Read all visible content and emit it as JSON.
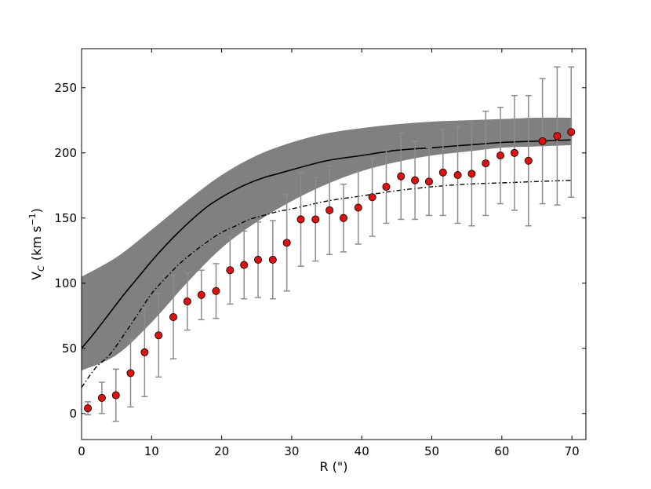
{
  "chart_data": {
    "type": "scatter",
    "xlabel": "R (\")",
    "ylabel_main": "V",
    "ylabel_sub": "C",
    "ylabel_units": "(km s",
    "ylabel_exp": "−1",
    "ylabel_close": ")",
    "xlim": [
      0,
      72
    ],
    "ylim": [
      -20,
      280
    ],
    "xticks": [
      0,
      10,
      20,
      30,
      40,
      50,
      60,
      70
    ],
    "yticks": [
      0,
      50,
      100,
      150,
      200,
      250
    ],
    "colors": {
      "band": "#808080",
      "model": "#000000",
      "dashdot": "#000000",
      "marker_fill": "#e0100e",
      "marker_edge": "#000000",
      "errorbar": "#8c8c8c"
    },
    "band": {
      "x": [
        0,
        5,
        10,
        15,
        20,
        25,
        30,
        35,
        40,
        45,
        50,
        55,
        60,
        65,
        70
      ],
      "upper": [
        105,
        120,
        141,
        163,
        183,
        198,
        208,
        215,
        219,
        222,
        224,
        225,
        226,
        227,
        227
      ],
      "lower": [
        33,
        45,
        70,
        100,
        127,
        147,
        163,
        176,
        186,
        193,
        198,
        201,
        204,
        205,
        206
      ]
    },
    "model_curve": {
      "x": [
        0,
        2,
        4,
        6,
        8,
        10,
        12,
        14,
        16,
        18,
        20,
        22,
        24,
        26,
        28,
        30,
        35,
        40,
        45,
        50,
        55,
        60,
        65,
        70
      ],
      "y": [
        50,
        63,
        77,
        91,
        104,
        117,
        129,
        140,
        150,
        159,
        166,
        172,
        177,
        181,
        184,
        187,
        194,
        198,
        202,
        204,
        206,
        208,
        209,
        210
      ]
    },
    "dashdot_curve": {
      "x": [
        0,
        2,
        4,
        6,
        8,
        10,
        12,
        14,
        16,
        18,
        20,
        22,
        24,
        26,
        28,
        30,
        35,
        40,
        45,
        50,
        55,
        60,
        65,
        70
      ],
      "y": [
        20,
        35,
        45,
        60,
        76,
        92,
        104,
        115,
        124,
        132,
        139,
        144,
        149,
        152,
        155,
        157,
        163,
        167,
        171,
        174,
        176,
        177,
        178,
        179
      ]
    },
    "points": [
      {
        "x": 0.9,
        "y": 4,
        "err": 5
      },
      {
        "x": 2.9,
        "y": 12,
        "err": 12
      },
      {
        "x": 4.9,
        "y": 14,
        "err": 20
      },
      {
        "x": 7.0,
        "y": 31,
        "err": 26
      },
      {
        "x": 9.0,
        "y": 47,
        "err": 34
      },
      {
        "x": 11.0,
        "y": 60,
        "err": 32
      },
      {
        "x": 13.1,
        "y": 74,
        "err": 32
      },
      {
        "x": 15.1,
        "y": 86,
        "err": 22
      },
      {
        "x": 17.1,
        "y": 91,
        "err": 19
      },
      {
        "x": 19.2,
        "y": 94,
        "err": 21
      },
      {
        "x": 21.2,
        "y": 110,
        "err": 26
      },
      {
        "x": 23.2,
        "y": 114,
        "err": 26
      },
      {
        "x": 25.2,
        "y": 118,
        "err": 29
      },
      {
        "x": 27.3,
        "y": 118,
        "err": 30
      },
      {
        "x": 29.3,
        "y": 131,
        "err": 37
      },
      {
        "x": 31.3,
        "y": 149,
        "err": 36
      },
      {
        "x": 33.4,
        "y": 149,
        "err": 32
      },
      {
        "x": 35.4,
        "y": 156,
        "err": 34
      },
      {
        "x": 37.4,
        "y": 150,
        "err": 26
      },
      {
        "x": 39.5,
        "y": 158,
        "err": 28
      },
      {
        "x": 41.5,
        "y": 166,
        "err": 30
      },
      {
        "x": 43.5,
        "y": 174,
        "err": 28
      },
      {
        "x": 45.6,
        "y": 182,
        "err": 33
      },
      {
        "x": 47.6,
        "y": 179,
        "err": 30
      },
      {
        "x": 49.6,
        "y": 178,
        "err": 26
      },
      {
        "x": 51.6,
        "y": 185,
        "err": 33
      },
      {
        "x": 53.7,
        "y": 183,
        "err": 37
      },
      {
        "x": 55.7,
        "y": 184,
        "err": 40
      },
      {
        "x": 57.7,
        "y": 192,
        "err": 40
      },
      {
        "x": 59.8,
        "y": 198,
        "err": 37
      },
      {
        "x": 61.8,
        "y": 200,
        "err": 44
      },
      {
        "x": 63.8,
        "y": 194,
        "err": 50
      },
      {
        "x": 65.8,
        "y": 209,
        "err": 48
      },
      {
        "x": 67.9,
        "y": 213,
        "err": 53
      },
      {
        "x": 69.9,
        "y": 216,
        "err": 50
      }
    ]
  }
}
